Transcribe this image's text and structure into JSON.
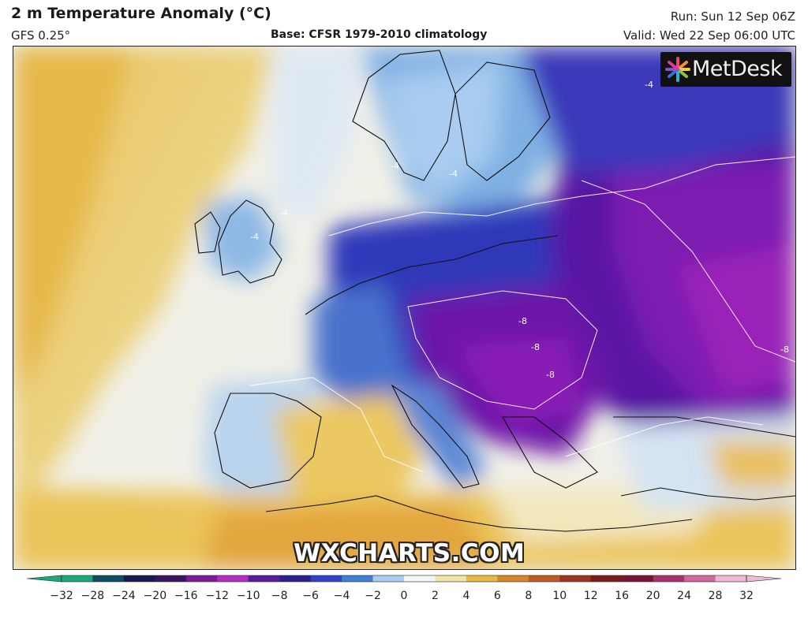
{
  "header": {
    "title": "2 m Temperature Anomaly (°C)",
    "model": "GFS 0.25°",
    "base": "Base: CFSR 1979-2010 climatology",
    "run": "Run: Sun 12 Sep 06Z",
    "valid": "Valid: Wed 22 Sep 06:00 UTC"
  },
  "logo": {
    "text": "MetDesk",
    "icon": "asterisk-logo-icon"
  },
  "watermark": "WXCHARTS.COM",
  "contour_labels": [
    "-4",
    "-4",
    "-4",
    "-4",
    "-4",
    "-8",
    "-8",
    "-8",
    "-8"
  ],
  "colorbar": {
    "ticks": [
      "−32",
      "−28",
      "−24",
      "−20",
      "−16",
      "−12",
      "−10",
      "−8",
      "−6",
      "−4",
      "−2",
      "0",
      "2",
      "4",
      "6",
      "8",
      "10",
      "12",
      "16",
      "20",
      "24",
      "28",
      "32"
    ],
    "colors": [
      "#1fa67a",
      "#0d4d63",
      "#1a1850",
      "#3a1560",
      "#7e1a95",
      "#b32fbf",
      "#5a1c99",
      "#2d1f8f",
      "#3340c8",
      "#3f7fd0",
      "#a9ccf0",
      "#f4f6f8",
      "#f0e3a8",
      "#e9b745",
      "#d8862a",
      "#bf5a25",
      "#9c3422",
      "#7a1d1a",
      "#7a1436",
      "#a8326f",
      "#d2669e",
      "#f0b9d3"
    ]
  },
  "colors": {
    "strong_cold": "#6a10a8",
    "cold": "#2b2fb4",
    "cool": "#5b8fd8",
    "near_zero": "#eef3f8",
    "warm": "#e7bf52",
    "hot": "#d88a24"
  }
}
